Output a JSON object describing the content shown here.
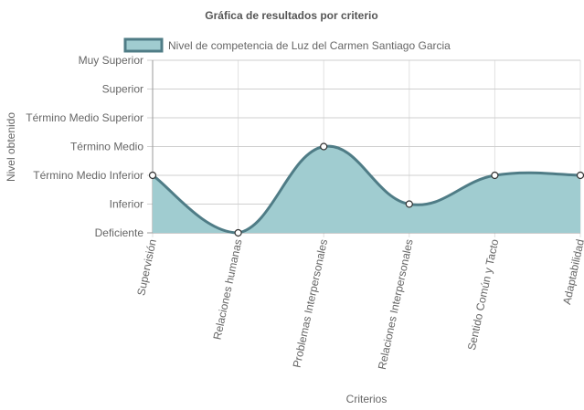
{
  "chart_data": {
    "type": "area",
    "title": "Gráfica de resultados por criterio",
    "xlabel": "Criterios",
    "ylabel": "Nivel obtenido",
    "categories": [
      "Supervisión",
      "Relaciones humanas",
      "Problemas Interpersonales",
      "Relaciones Interpersonales",
      "Sentido Común y Tacto",
      "Adaptabilidad"
    ],
    "y_levels": [
      "Deficiente",
      "Inferior",
      "Término Medio Inferior",
      "Término Medio",
      "Término Medio Superior",
      "Superior",
      "Muy Superior"
    ],
    "ylim": [
      0,
      6
    ],
    "series": [
      {
        "name": "Nivel de competencia de Luz del Carmen Santiago Garcia",
        "values": [
          2,
          0,
          3,
          1,
          2,
          2
        ],
        "fill_color": "#a0ccd0",
        "line_color": "#4f7c86"
      }
    ],
    "grid": true,
    "legend_position": "top"
  }
}
